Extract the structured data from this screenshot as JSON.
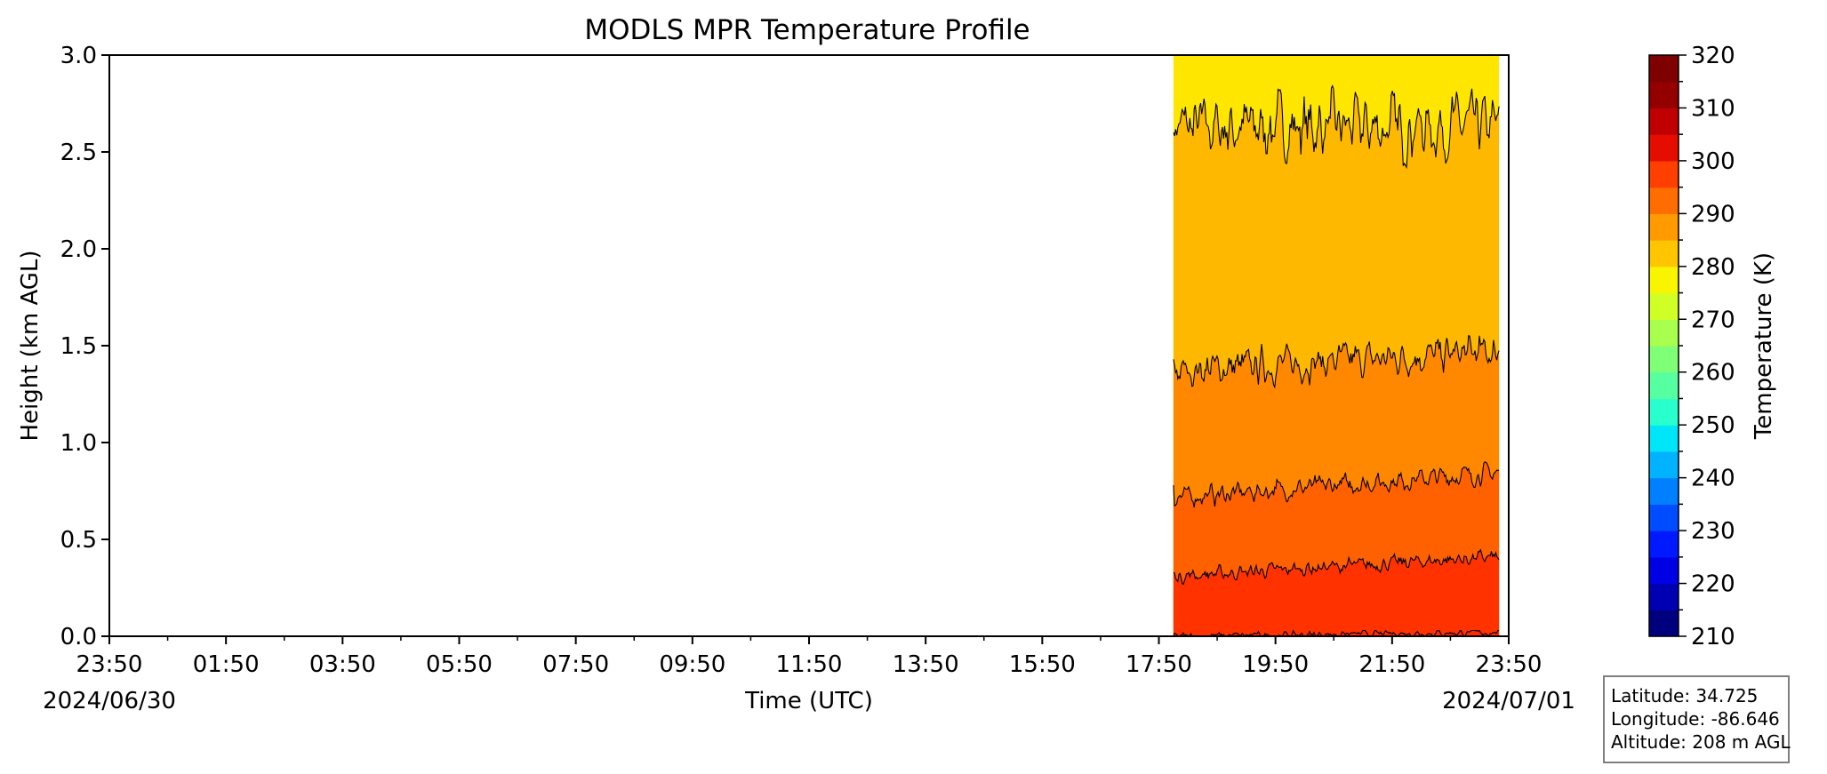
{
  "chart_data": {
    "type": "heatmap",
    "title": "MODLS MPR Temperature Profile",
    "xlabel": "Time (UTC)",
    "ylabel": "Height (km AGL)",
    "x_tick_labels": [
      "23:50",
      "01:50",
      "03:50",
      "05:50",
      "07:50",
      "09:50",
      "11:50",
      "13:50",
      "15:50",
      "17:50",
      "19:50",
      "21:50",
      "23:50"
    ],
    "x_date_labels": {
      "start": "2024/06/30",
      "end": "2024/07/01"
    },
    "x_range": [
      "2024-06-30T23:50",
      "2024-07-01T23:50"
    ],
    "data_time_range": [
      "2024-07-01T18:05",
      "2024-07-01T23:40"
    ],
    "y_ticks": [
      "0.0",
      "0.5",
      "1.0",
      "1.5",
      "2.0",
      "2.5",
      "3.0"
    ],
    "ylim": [
      0,
      3
    ],
    "grid": false,
    "colorbar": {
      "label": "Temperature (K)",
      "min": 210,
      "max": 320,
      "step": 5,
      "tick_labels": [
        "210",
        "220",
        "230",
        "240",
        "250",
        "260",
        "270",
        "280",
        "290",
        "300",
        "310",
        "320"
      ],
      "colors": [
        "#00007f",
        "#0000b2",
        "#0000e5",
        "#0019ff",
        "#004cff",
        "#007fff",
        "#00b2ff",
        "#00e5f7",
        "#29ffcd",
        "#56ff9f",
        "#7fff77",
        "#a9ff4d",
        "#d0ff26",
        "#f9f500",
        "#ffc600",
        "#ff9a00",
        "#ff6c00",
        "#ff3f00",
        "#e50d00",
        "#c00000",
        "#940000",
        "#7f0000"
      ]
    },
    "contour_levels": [
      {
        "level_K": 280,
        "color": "#ffe600",
        "mean_height_km": 2.63,
        "start_height_km": 2.6
      },
      {
        "level_K": 285,
        "color": "#ffb800",
        "mean_height_km": 1.42,
        "start_height_km": 1.43
      },
      {
        "level_K": 290,
        "color": "#ff8800",
        "mean_height_km": 0.78,
        "start_height_km": 0.78
      },
      {
        "level_K": 295,
        "color": "#ff6000",
        "mean_height_km": 0.36,
        "start_height_km": 0.33
      },
      {
        "level_K": 300,
        "color": "#ff3200",
        "mean_height_km": 0.01,
        "start_height_km": 0.0
      }
    ]
  },
  "station_info": {
    "latitude": "Latitude: 34.725",
    "longitude": "Longitude: -86.646",
    "altitude": "Altitude: 208 m AGL"
  }
}
